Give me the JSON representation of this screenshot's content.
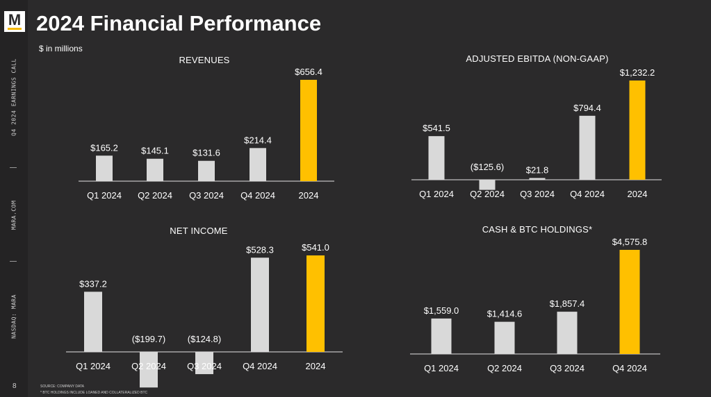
{
  "sidebar": {
    "logo_letter": "M",
    "labels": [
      "Q4 2024 EARNINGS CALL",
      "MARA.COM",
      "NASDAQ: MARA"
    ],
    "page_number": "8"
  },
  "header": {
    "title": "2024 Financial Performance",
    "units": "$ in millions"
  },
  "footnotes": {
    "source": "SOURCE: COMPANY DATA",
    "btc_note": "* BTC HOLDINGS INCLUDE LOANED AND COLLATERALIZED BTC"
  },
  "colors": {
    "bar": "#d9d9d9",
    "highlight": "#ffc000",
    "axis": "#bfbfbf",
    "text": "#ffffff"
  },
  "chart_data": [
    {
      "type": "bar",
      "title": "REVENUES",
      "categories": [
        "Q1 2024",
        "Q2 2024",
        "Q3 2024",
        "Q4 2024",
        "2024"
      ],
      "values": [
        165.2,
        145.1,
        131.6,
        214.4,
        656.4
      ],
      "value_labels": [
        "$165.2",
        "$145.1",
        "$131.6",
        "$214.4",
        "$656.4"
      ],
      "highlight_index": 4,
      "ylim": [
        0,
        656.4
      ]
    },
    {
      "type": "bar",
      "title": "ADJUSTED EBITDA (NON-GAAP)",
      "categories": [
        "Q1 2024",
        "Q2 2024",
        "Q3 2024",
        "Q4 2024",
        "2024"
      ],
      "values": [
        541.5,
        -125.6,
        21.8,
        794.4,
        1232.2
      ],
      "value_labels": [
        "$541.5",
        "($125.6)",
        "$21.8",
        "$794.4",
        "$1,232.2"
      ],
      "highlight_index": 4,
      "ylim": [
        -125.6,
        1232.2
      ]
    },
    {
      "type": "bar",
      "title": "NET INCOME",
      "categories": [
        "Q1 2024",
        "Q2 2024",
        "Q3 2024",
        "Q4 2024",
        "2024"
      ],
      "values": [
        337.2,
        -199.7,
        -124.8,
        528.3,
        541.0
      ],
      "value_labels": [
        "$337.2",
        "($199.7)",
        "($124.8)",
        "$528.3",
        "$541.0"
      ],
      "highlight_index": 4,
      "ylim": [
        -199.7,
        541.0
      ]
    },
    {
      "type": "bar",
      "title": "CASH & BTC HOLDINGS*",
      "categories": [
        "Q1 2024",
        "Q2 2024",
        "Q3 2024",
        "Q4 2024"
      ],
      "values": [
        1559.0,
        1414.6,
        1857.4,
        4575.8
      ],
      "value_labels": [
        "$1,559.0",
        "$1,414.6",
        "$1,857.4",
        "$4,575.8"
      ],
      "highlight_index": 3,
      "ylim": [
        0,
        4575.8
      ]
    }
  ]
}
